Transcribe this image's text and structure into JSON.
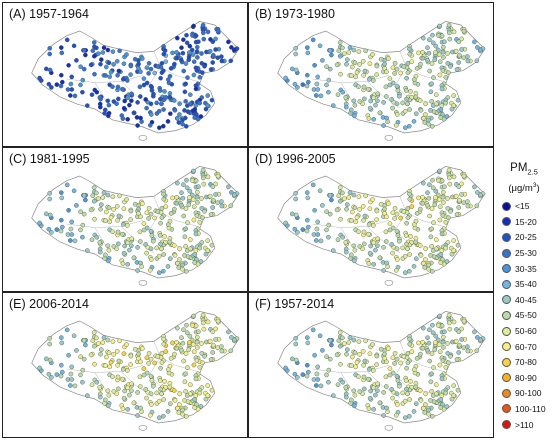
{
  "panels": [
    {
      "label": "(A) 1957-1964",
      "mean_class": 2.3
    },
    {
      "label": "(B) 1973-1980",
      "mean_class": 6.6
    },
    {
      "label": "(C) 1981-1995",
      "mean_class": 6.9
    },
    {
      "label": "(D) 1996-2005",
      "mean_class": 7.3
    },
    {
      "label": "(E) 2006-2014",
      "mean_class": 7.7
    },
    {
      "label": "(F) 1957-2014",
      "mean_class": 7.0
    }
  ],
  "legend": {
    "title_main": "PM",
    "title_sub": "2.5",
    "unit_main": "(μg/m",
    "unit_sup": "3",
    "unit_close": ")",
    "items": [
      {
        "label": "<15",
        "color": "#08109c"
      },
      {
        "label": "15-20",
        "color": "#1330b8"
      },
      {
        "label": "20-25",
        "color": "#1f52c9"
      },
      {
        "label": "25-30",
        "color": "#3474d0"
      },
      {
        "label": "30-35",
        "color": "#4896d8"
      },
      {
        "label": "35-40",
        "color": "#6fb6e2"
      },
      {
        "label": "40-45",
        "color": "#98cbc8"
      },
      {
        "label": "45-50",
        "color": "#b9dca9"
      },
      {
        "label": "50-60",
        "color": "#dceb96"
      },
      {
        "label": "60-70",
        "color": "#f5f084"
      },
      {
        "label": "70-80",
        "color": "#f9d43c"
      },
      {
        "label": "80-90",
        "color": "#f6b126"
      },
      {
        "label": "90-100",
        "color": "#ee8a1c"
      },
      {
        "label": "100-110",
        "color": "#e35a14"
      },
      {
        "label": ">110",
        "color": "#d6160f"
      }
    ]
  }
}
